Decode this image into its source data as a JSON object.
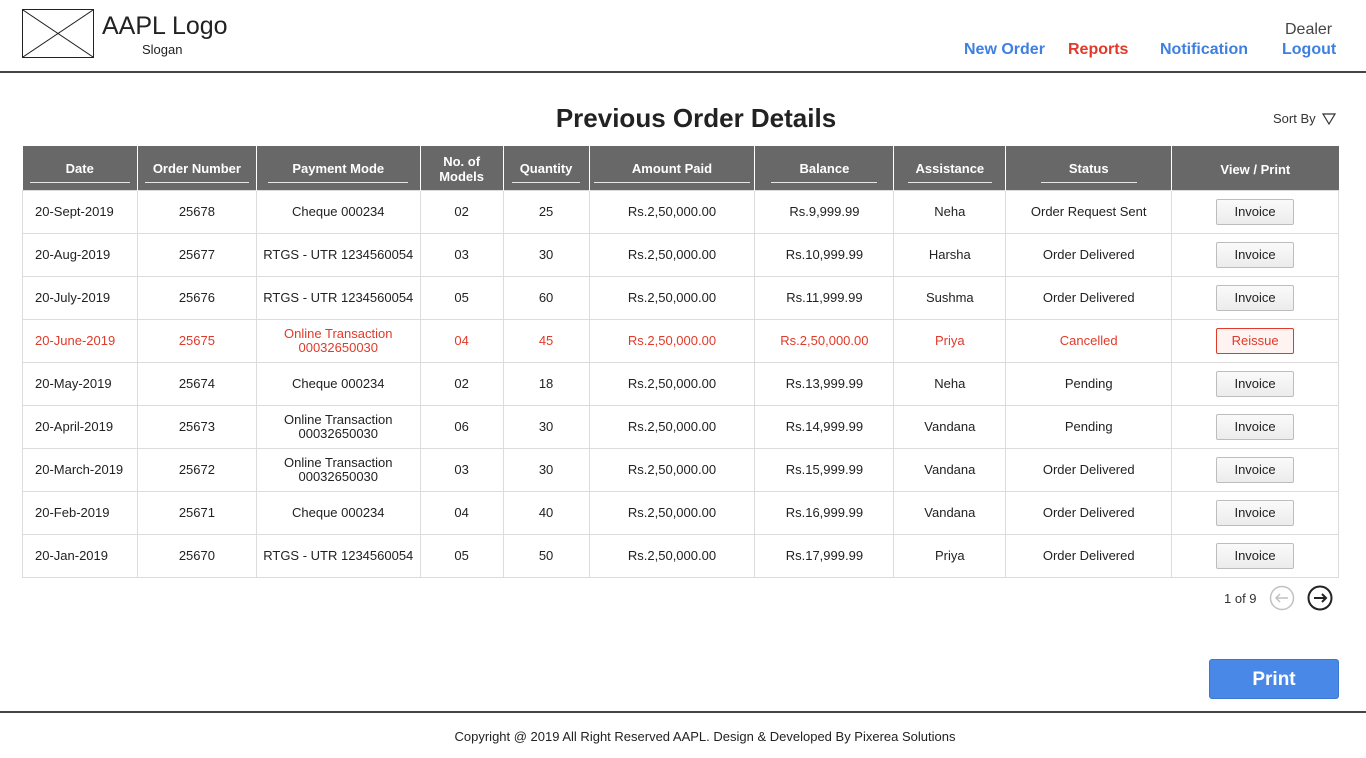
{
  "header": {
    "logo_text": "AAPL Logo",
    "slogan": "Slogan",
    "nav": {
      "new_order": "New Order",
      "reports": "Reports",
      "notification": "Notification",
      "logout": "Logout"
    },
    "user_role": "Dealer"
  },
  "page": {
    "title": "Previous Order Details",
    "sort_label": "Sort By"
  },
  "table": {
    "columns": [
      "Date",
      "Order Number",
      "Payment Mode",
      "No. of Models",
      "Quantity",
      "Amount Paid",
      "Balance",
      "Assistance",
      "Status",
      "View / Print"
    ],
    "rows": [
      {
        "date": "20-Sept-2019",
        "order": "25678",
        "payment_1": "Cheque 000234",
        "payment_2": "",
        "models": "02",
        "qty": "25",
        "paid": "Rs.2,50,000.00",
        "balance": "Rs.9,999.99",
        "assist": "Neha",
        "status": "Order Request Sent",
        "action": "Invoice"
      },
      {
        "date": "20-Aug-2019",
        "order": "25677",
        "payment_1": "RTGS - UTR 1234560054",
        "payment_2": "",
        "models": "03",
        "qty": "30",
        "paid": "Rs.2,50,000.00",
        "balance": "Rs.10,999.99",
        "assist": "Harsha",
        "status": "Order Delivered",
        "action": "Invoice"
      },
      {
        "date": "20-July-2019",
        "order": "25676",
        "payment_1": "RTGS - UTR 1234560054",
        "payment_2": "",
        "models": "05",
        "qty": "60",
        "paid": "Rs.2,50,000.00",
        "balance": "Rs.11,999.99",
        "assist": "Sushma",
        "status": "Order Delivered",
        "action": "Invoice"
      },
      {
        "date": "20-June-2019",
        "order": "25675",
        "payment_1": "Online Transaction",
        "payment_2": "00032650030",
        "models": "04",
        "qty": "45",
        "paid": "Rs.2,50,000.00",
        "balance": "Rs.2,50,000.00",
        "assist": "Priya",
        "status": "Cancelled",
        "action": "Reissue"
      },
      {
        "date": "20-May-2019",
        "order": "25674",
        "payment_1": "Cheque 000234",
        "payment_2": "",
        "models": "02",
        "qty": "18",
        "paid": "Rs.2,50,000.00",
        "balance": "Rs.13,999.99",
        "assist": "Neha",
        "status": "Pending",
        "action": "Invoice"
      },
      {
        "date": "20-April-2019",
        "order": "25673",
        "payment_1": "Online Transaction",
        "payment_2": "00032650030",
        "models": "06",
        "qty": "30",
        "paid": "Rs.2,50,000.00",
        "balance": "Rs.14,999.99",
        "assist": "Vandana",
        "status": "Pending",
        "action": "Invoice"
      },
      {
        "date": "20-March-2019",
        "order": "25672",
        "payment_1": "Online Transaction",
        "payment_2": "00032650030",
        "models": "03",
        "qty": "30",
        "paid": "Rs.2,50,000.00",
        "balance": "Rs.15,999.99",
        "assist": "Vandana",
        "status": "Order Delivered",
        "action": "Invoice"
      },
      {
        "date": "20-Feb-2019",
        "order": "25671",
        "payment_1": "Cheque 000234",
        "payment_2": "",
        "models": "04",
        "qty": "40",
        "paid": "Rs.2,50,000.00",
        "balance": "Rs.16,999.99",
        "assist": "Vandana",
        "status": "Order Delivered",
        "action": "Invoice"
      },
      {
        "date": "20-Jan-2019",
        "order": "25670",
        "payment_1": "RTGS - UTR 1234560054",
        "payment_2": "",
        "models": "05",
        "qty": "50",
        "paid": "Rs.2,50,000.00",
        "balance": "Rs.17,999.99",
        "assist": "Priya",
        "status": "Order Delivered",
        "action": "Invoice"
      }
    ]
  },
  "pagination": {
    "label": "1 of 9",
    "prev_icon": "arrow-left-circle-icon",
    "next_icon": "arrow-right-circle-icon"
  },
  "actions": {
    "print_label": "Print"
  },
  "footer": {
    "copyright": "Copyright @ 2019 All Right Reserved AAPL. Design & Developed By Pixerea Solutions"
  },
  "colors": {
    "accent_blue": "#3f7fe0",
    "alert_red": "#e03a2a",
    "header_gray": "#686868",
    "print_blue": "#4a88e8"
  }
}
